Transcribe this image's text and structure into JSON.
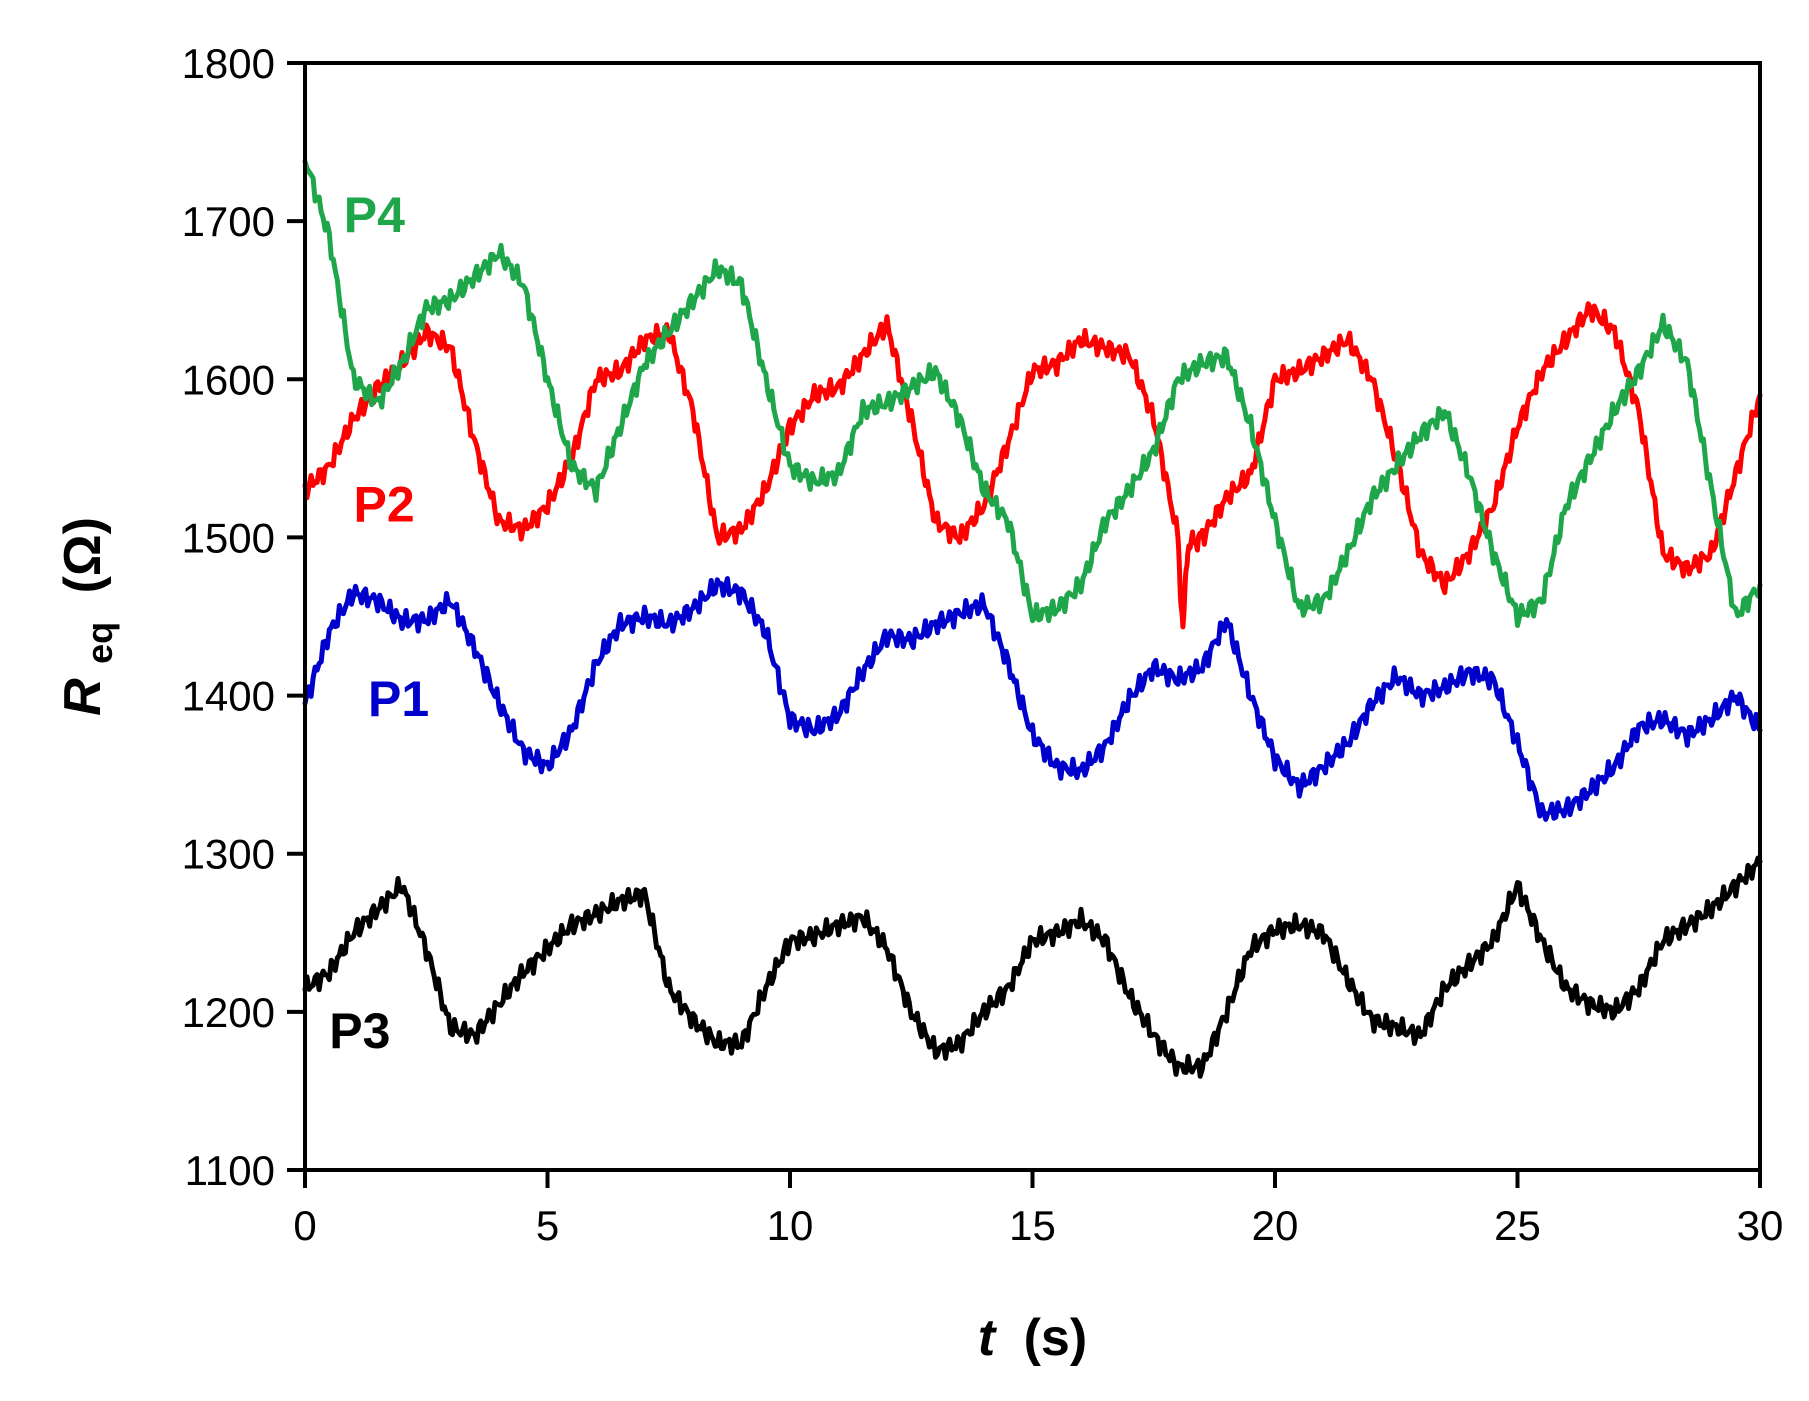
{
  "chart_data": {
    "type": "line",
    "title": "",
    "xlabel": {
      "var": "t",
      "unit": "(s)"
    },
    "ylabel": {
      "var": "R",
      "sub": "eq",
      "unit": "(Ω)"
    },
    "xlim": [
      0,
      30
    ],
    "ylim": [
      1100,
      1800
    ],
    "xticks": [
      0,
      5,
      10,
      15,
      20,
      25,
      30
    ],
    "yticks": [
      1100,
      1200,
      1300,
      1400,
      1500,
      1600,
      1700,
      1800
    ],
    "grid": false,
    "series": [
      {
        "name": "P1",
        "color": "#0000cc",
        "label_at": [
          1.3,
          1387
        ],
        "x": [
          0,
          0.5,
          1,
          1.5,
          2,
          2.5,
          3,
          3.5,
          4,
          4.5,
          5,
          5.5,
          6,
          6.5,
          7,
          7.5,
          8,
          8.5,
          9,
          9.5,
          10,
          10.5,
          11,
          11.5,
          12,
          12.5,
          13,
          13.5,
          14,
          14.5,
          15,
          15.5,
          16,
          16.5,
          17,
          17.5,
          18,
          18.5,
          19,
          19.5,
          20,
          20.5,
          21,
          21.5,
          22,
          22.5,
          23,
          23.5,
          24,
          24.5,
          25,
          25.5,
          26,
          26.5,
          27,
          27.5,
          28,
          28.5,
          29,
          29.5,
          30
        ],
        "values": [
          1395,
          1440,
          1465,
          1460,
          1447,
          1448,
          1460,
          1430,
          1395,
          1365,
          1355,
          1378,
          1420,
          1445,
          1450,
          1445,
          1455,
          1470,
          1465,
          1440,
          1385,
          1378,
          1388,
          1415,
          1438,
          1435,
          1445,
          1452,
          1458,
          1420,
          1375,
          1355,
          1352,
          1368,
          1398,
          1418,
          1410,
          1418,
          1448,
          1400,
          1360,
          1342,
          1355,
          1370,
          1395,
          1412,
          1400,
          1405,
          1415,
          1410,
          1370,
          1325,
          1328,
          1340,
          1355,
          1380,
          1385,
          1375,
          1385,
          1400,
          1378
        ]
      },
      {
        "name": "P2",
        "color": "#ff0000",
        "label_at": [
          1.0,
          1510
        ],
        "x": [
          0,
          0.5,
          1,
          1.5,
          2,
          2.5,
          3,
          3.5,
          4,
          4.5,
          5,
          5.5,
          6,
          6.5,
          7,
          7.5,
          8,
          8.5,
          9,
          9.5,
          10,
          10.5,
          11,
          11.5,
          12,
          12.5,
          13,
          13.5,
          14,
          14.5,
          15,
          15.5,
          16,
          16.5,
          17,
          17.5,
          18,
          18.1,
          18.2,
          18.5,
          19,
          19.5,
          20,
          20.5,
          21,
          21.5,
          22,
          22.5,
          23,
          23.5,
          24,
          24.5,
          25,
          25.5,
          26,
          26.5,
          27,
          27.5,
          28,
          28.5,
          29,
          29.5,
          30
        ],
        "values": [
          1530,
          1545,
          1575,
          1595,
          1610,
          1630,
          1620,
          1560,
          1510,
          1505,
          1520,
          1550,
          1600,
          1605,
          1625,
          1630,
          1580,
          1500,
          1505,
          1530,
          1570,
          1590,
          1595,
          1615,
          1635,
          1575,
          1510,
          1500,
          1520,
          1560,
          1605,
          1610,
          1625,
          1620,
          1615,
          1575,
          1500,
          1440,
          1495,
          1500,
          1525,
          1540,
          1600,
          1605,
          1615,
          1625,
          1600,
          1550,
          1490,
          1470,
          1490,
          1520,
          1570,
          1605,
          1625,
          1645,
          1630,
          1580,
          1490,
          1480,
          1490,
          1540,
          1590
        ]
      },
      {
        "name": "P3",
        "color": "#000000",
        "label_at": [
          0.5,
          1177
        ],
        "x": [
          0,
          0.5,
          1,
          1.5,
          2,
          2.5,
          3,
          3.5,
          4,
          4.5,
          5,
          5.5,
          6,
          6.5,
          7,
          7.5,
          8,
          8.5,
          9,
          9.5,
          10,
          10.5,
          11,
          11.5,
          12,
          12.5,
          13,
          13.5,
          14,
          14.5,
          15,
          15.5,
          16,
          16.5,
          17,
          17.5,
          18,
          18.5,
          19,
          19.5,
          20,
          20.5,
          21,
          21.5,
          22,
          22.5,
          23,
          23.5,
          24,
          24.5,
          25,
          25.5,
          26,
          26.5,
          27,
          27.5,
          28,
          28.5,
          29,
          29.5,
          30
        ],
        "values": [
          1215,
          1225,
          1250,
          1265,
          1280,
          1240,
          1190,
          1185,
          1205,
          1225,
          1240,
          1255,
          1262,
          1270,
          1275,
          1215,
          1195,
          1180,
          1180,
          1215,
          1245,
          1248,
          1255,
          1260,
          1240,
          1200,
          1175,
          1180,
          1200,
          1215,
          1245,
          1250,
          1258,
          1245,
          1210,
          1185,
          1165,
          1165,
          1200,
          1240,
          1252,
          1255,
          1250,
          1220,
          1195,
          1190,
          1185,
          1215,
          1230,
          1245,
          1280,
          1245,
          1215,
          1205,
          1200,
          1215,
          1245,
          1255,
          1265,
          1280,
          1295
        ]
      },
      {
        "name": "P4",
        "color": "#1fa64a",
        "label_at": [
          0.8,
          1693
        ],
        "x": [
          0,
          0.5,
          1,
          1.5,
          2,
          2.5,
          3,
          3.5,
          4,
          4.5,
          5,
          5.5,
          6,
          6.5,
          7,
          7.5,
          8,
          8.5,
          9,
          9.5,
          10,
          10.5,
          11,
          11.5,
          12,
          12.5,
          13,
          13.5,
          14,
          14.5,
          15,
          15.5,
          16,
          16.5,
          17,
          17.5,
          18,
          18.5,
          19,
          19.5,
          20,
          20.5,
          21,
          21.5,
          22,
          22.5,
          23,
          23.5,
          24,
          24.5,
          25,
          25.5,
          26,
          26.5,
          27,
          27.5,
          28,
          28.5,
          29,
          29.5,
          30
        ],
        "values": [
          1740,
          1690,
          1600,
          1585,
          1610,
          1645,
          1650,
          1665,
          1680,
          1660,
          1600,
          1545,
          1530,
          1570,
          1610,
          1630,
          1650,
          1670,
          1660,
          1600,
          1545,
          1535,
          1540,
          1580,
          1585,
          1595,
          1605,
          1575,
          1530,
          1510,
          1450,
          1455,
          1470,
          1510,
          1530,
          1555,
          1600,
          1610,
          1615,
          1570,
          1510,
          1455,
          1460,
          1490,
          1525,
          1545,
          1565,
          1580,
          1540,
          1490,
          1450,
          1460,
          1520,
          1550,
          1580,
          1605,
          1635,
          1610,
          1530,
          1450,
          1470
        ]
      }
    ]
  }
}
